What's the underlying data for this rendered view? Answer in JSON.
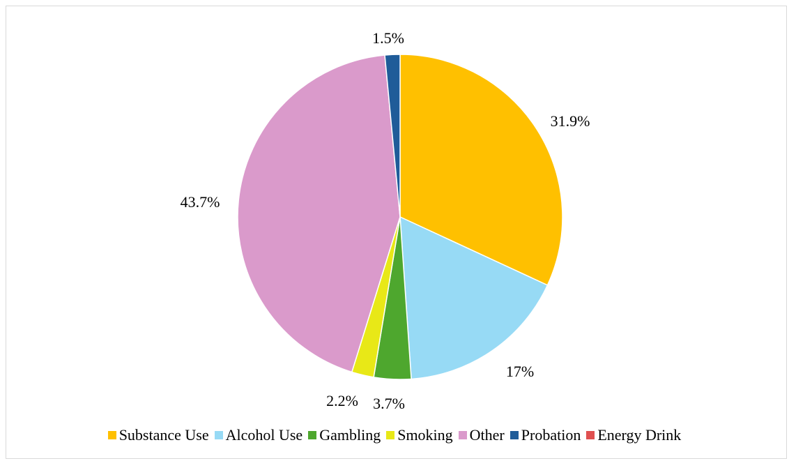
{
  "chart_data": {
    "type": "pie",
    "title": "",
    "slices": [
      {
        "name": "Substance Use",
        "value": 31.9,
        "label": "31.9%",
        "color": "#FFC000"
      },
      {
        "name": "Alcohol Use",
        "value": 17,
        "label": "17%",
        "color": "#97DAF5"
      },
      {
        "name": "Gambling",
        "value": 3.7,
        "label": "3.7%",
        "color": "#4EA72E"
      },
      {
        "name": "Smoking",
        "value": 2.2,
        "label": "2.2%",
        "color": "#E8E817"
      },
      {
        "name": "Other",
        "value": 43.7,
        "label": "43.7%",
        "color": "#DA9ACB"
      },
      {
        "name": "Probation",
        "value": 1.5,
        "label": "1.5%",
        "color": "#1F5C99"
      },
      {
        "name": "Energy Drink",
        "value": 0,
        "label": "",
        "color": "#E05050"
      }
    ],
    "legend_position": "bottom",
    "start_angle": "12 o'clock",
    "direction": "clockwise"
  }
}
